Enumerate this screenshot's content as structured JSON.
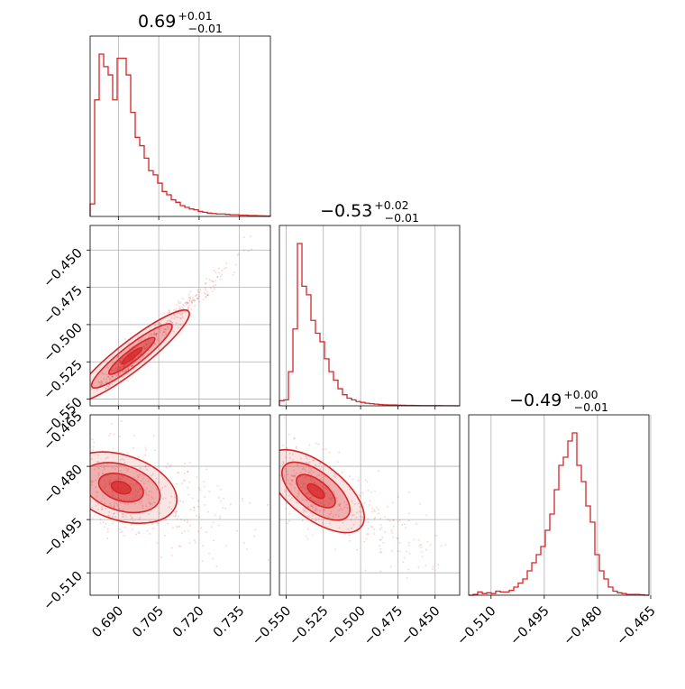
{
  "colors": {
    "series": "#d62728",
    "grid": "#b0b0b0"
  },
  "chart_data": {
    "type": "corner",
    "parameters": [
      {
        "median": "0.69",
        "plus": "+0.01",
        "minus": "−0.01",
        "range": [
          0.6795,
          0.7465
        ],
        "ticks": [
          0.69,
          0.705,
          0.72,
          0.735
        ],
        "tick_labels": [
          "0.690",
          "0.705",
          "0.720",
          "0.735"
        ]
      },
      {
        "median": "−0.53",
        "plus": "+0.02",
        "minus": "−0.01",
        "range": [
          -0.5545,
          -0.4335
        ],
        "ticks": [
          -0.55,
          -0.525,
          -0.5,
          -0.475,
          -0.45
        ],
        "tick_labels": [
          "−0.550",
          "−0.525",
          "−0.500",
          "−0.475",
          "−0.450"
        ]
      },
      {
        "median": "−0.49",
        "plus": "+0.00",
        "minus": "−0.01",
        "range": [
          -0.5163,
          -0.4655
        ],
        "ticks": [
          -0.51,
          -0.495,
          -0.48,
          -0.465
        ],
        "tick_labels": [
          "−0.510",
          "−0.495",
          "−0.480",
          "−0.465"
        ]
      }
    ],
    "histograms": [
      [
        1.5,
        14,
        19.5,
        18,
        17,
        14,
        19,
        19,
        17,
        12.5,
        9.5,
        8.5,
        7,
        5.5,
        5,
        4,
        3,
        2.6,
        2,
        1.7,
        1.3,
        1.1,
        0.9,
        0.8,
        0.6,
        0.5,
        0.4,
        0.35,
        0.3,
        0.3,
        0.25,
        0.2,
        0.2,
        0.15,
        0.15,
        0.1,
        0.1,
        0.08,
        0.06,
        0.05
      ],
      [
        0.6,
        0.7,
        4,
        9,
        19,
        14,
        13,
        10,
        8.5,
        7.5,
        5.5,
        4,
        3,
        2,
        1.3,
        0.9,
        0.7,
        0.5,
        0.4,
        0.3,
        0.25,
        0.2,
        0.15,
        0.12,
        0.1,
        0.1,
        0.08,
        0.06,
        0.05,
        0.05,
        0.04,
        0.03,
        0.03,
        0.02,
        0.02,
        0.02,
        0.01,
        0.01,
        0.01,
        0
      ],
      [
        0,
        0.1,
        0.4,
        0.2,
        0.3,
        0.2,
        0.5,
        0.4,
        0.4,
        0.6,
        1,
        1.5,
        2,
        3,
        4,
        5,
        6,
        8,
        10,
        13,
        16,
        17,
        19,
        20,
        16,
        14,
        11,
        9,
        5,
        3,
        2,
        1,
        0.5,
        0.3,
        0.2,
        0.1,
        0.1,
        0.1,
        0.05,
        0
      ]
    ]
  }
}
